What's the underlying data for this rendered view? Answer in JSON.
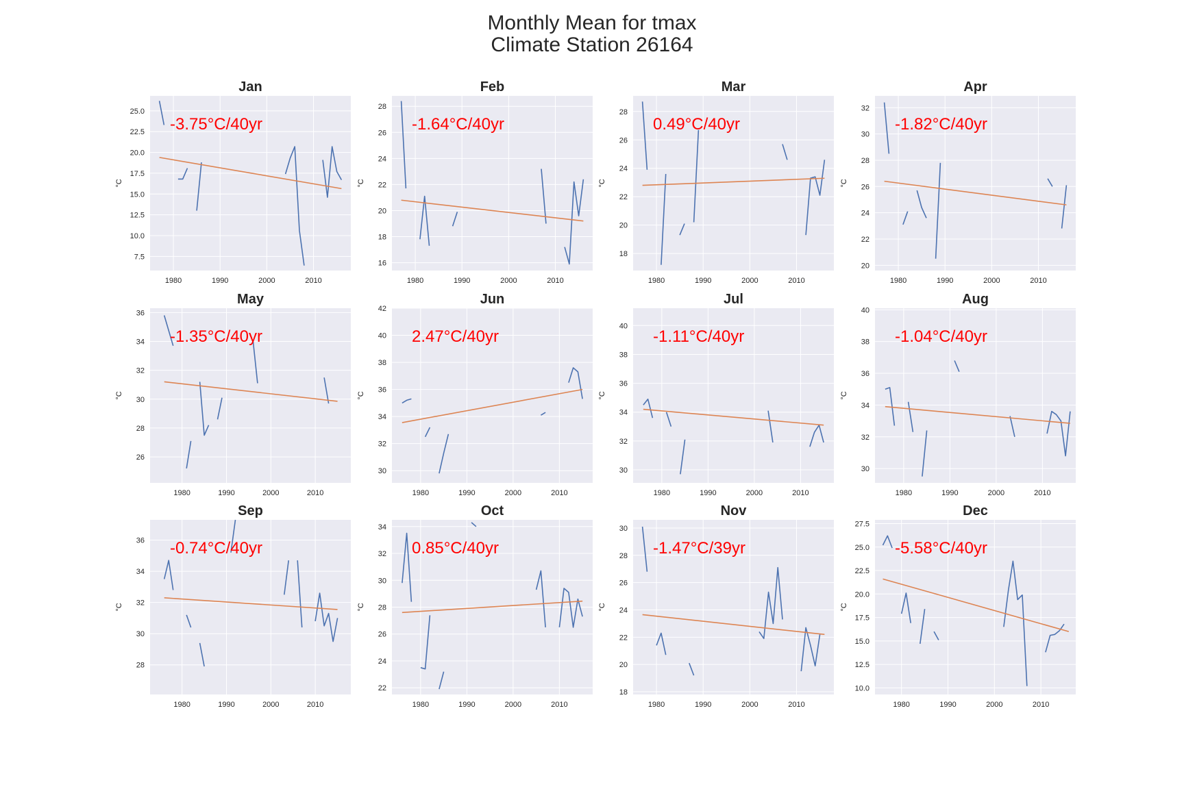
{
  "figure": {
    "title_line1": "Monthly Mean for tmax",
    "title_line2": "Climate Station 26164"
  },
  "colors": {
    "background": "#eaeaf2",
    "grid": "#ffffff",
    "series": "#4c72b0",
    "trend": "#dd8452",
    "annotation": "#ff0000",
    "text": "#262626"
  },
  "chart_data": [
    {
      "type": "line",
      "title": "Jan",
      "ylabel": "°C",
      "annotation": "-3.75°C/40yr",
      "xlim": [
        1975,
        2018
      ],
      "ylim": [
        5.8,
        26.8
      ],
      "xticks": [
        1980,
        1990,
        2000,
        2010
      ],
      "yticks": [
        7.5,
        10.0,
        12.5,
        15.0,
        17.5,
        20.0,
        22.5,
        25.0
      ],
      "series": [
        {
          "x": [
            1977,
            1978
          ],
          "y": [
            26.2,
            23.3
          ]
        },
        {
          "x": [
            1981,
            1982,
            1983
          ],
          "y": [
            16.8,
            16.8,
            18.1
          ]
        },
        {
          "x": [
            1985,
            1986
          ],
          "y": [
            13.0,
            18.8
          ]
        },
        {
          "x": [
            2004,
            2005,
            2006,
            2007,
            2008
          ],
          "y": [
            17.4,
            19.3,
            20.7,
            10.6,
            6.4
          ]
        },
        {
          "x": [
            2012,
            2013,
            2014,
            2015,
            2016
          ],
          "y": [
            19.1,
            14.6,
            20.7,
            17.7,
            16.7
          ]
        }
      ],
      "trend": {
        "x": [
          1977,
          2016
        ],
        "y": [
          19.4,
          15.65
        ]
      }
    },
    {
      "type": "line",
      "title": "Feb",
      "ylabel": "°C",
      "annotation": "-1.64°C/40yr",
      "xlim": [
        1975,
        2018
      ],
      "ylim": [
        15.4,
        28.8
      ],
      "xticks": [
        1980,
        1990,
        2000,
        2010
      ],
      "yticks": [
        16,
        18,
        20,
        22,
        24,
        26,
        28
      ],
      "series": [
        {
          "x": [
            1977,
            1978
          ],
          "y": [
            28.4,
            21.7
          ]
        },
        {
          "x": [
            1981,
            1982,
            1983
          ],
          "y": [
            17.8,
            21.1,
            17.3
          ]
        },
        {
          "x": [
            1988,
            1989
          ],
          "y": [
            18.8,
            19.9
          ]
        },
        {
          "x": [
            2007,
            2008
          ],
          "y": [
            23.2,
            19.0
          ]
        },
        {
          "x": [
            2012,
            2013,
            2014,
            2015,
            2016
          ],
          "y": [
            17.2,
            15.9,
            22.2,
            19.6,
            22.4
          ]
        }
      ],
      "trend": {
        "x": [
          1977,
          2016
        ],
        "y": [
          20.8,
          19.2
        ]
      }
    },
    {
      "type": "line",
      "title": "Mar",
      "ylabel": "°C",
      "annotation": "0.49°C/40yr",
      "xlim": [
        1975,
        2018
      ],
      "ylim": [
        16.8,
        29.1
      ],
      "xticks": [
        1980,
        1990,
        2000,
        2010
      ],
      "yticks": [
        18,
        20,
        22,
        24,
        26,
        28
      ],
      "series": [
        {
          "x": [
            1977,
            1978
          ],
          "y": [
            28.7,
            23.9
          ]
        },
        {
          "x": [
            1981,
            1982
          ],
          "y": [
            17.2,
            23.6
          ]
        },
        {
          "x": [
            1985,
            1986
          ],
          "y": [
            19.3,
            20.1
          ]
        },
        {
          "x": [
            1988,
            1989
          ],
          "y": [
            20.2,
            26.7
          ]
        },
        {
          "x": [
            2007,
            2008
          ],
          "y": [
            25.7,
            24.6
          ]
        },
        {
          "x": [
            2012,
            2013,
            2014,
            2015,
            2016
          ],
          "y": [
            19.3,
            23.3,
            23.4,
            22.1,
            24.6
          ]
        }
      ],
      "trend": {
        "x": [
          1977,
          2016
        ],
        "y": [
          22.8,
          23.3
        ]
      }
    },
    {
      "type": "line",
      "title": "Apr",
      "ylabel": "°C",
      "annotation": "-1.82°C/40yr",
      "xlim": [
        1975,
        2018
      ],
      "ylim": [
        19.6,
        32.9
      ],
      "xticks": [
        1980,
        1990,
        2000,
        2010
      ],
      "yticks": [
        20,
        22,
        24,
        26,
        28,
        30,
        32
      ],
      "series": [
        {
          "x": [
            1977,
            1978
          ],
          "y": [
            32.4,
            28.5
          ]
        },
        {
          "x": [
            1981,
            1982
          ],
          "y": [
            23.1,
            24.1
          ]
        },
        {
          "x": [
            1984,
            1985,
            1986
          ],
          "y": [
            25.7,
            24.4,
            23.6
          ]
        },
        {
          "x": [
            1988,
            1989
          ],
          "y": [
            20.5,
            27.8
          ]
        },
        {
          "x": [
            2012,
            2013
          ],
          "y": [
            26.6,
            26.0
          ]
        },
        {
          "x": [
            2015,
            2016
          ],
          "y": [
            22.8,
            26.1
          ]
        }
      ],
      "trend": {
        "x": [
          1977,
          2016
        ],
        "y": [
          26.4,
          24.6
        ]
      }
    },
    {
      "type": "line",
      "title": "May",
      "ylabel": "°C",
      "annotation": "-1.35°C/40yr",
      "xlim": [
        1972.8,
        2018
      ],
      "ylim": [
        24.2,
        36.3
      ],
      "xticks": [
        1980,
        1990,
        2000,
        2010
      ],
      "yticks": [
        26,
        28,
        30,
        32,
        34,
        36
      ],
      "series": [
        {
          "x": [
            1976,
            1978
          ],
          "y": [
            35.8,
            33.7
          ]
        },
        {
          "x": [
            1981,
            1982
          ],
          "y": [
            25.2,
            27.1
          ]
        },
        {
          "x": [
            1984,
            1985,
            1986
          ],
          "y": [
            31.2,
            27.5,
            28.2
          ]
        },
        {
          "x": [
            1988,
            1989
          ],
          "y": [
            28.6,
            30.1
          ]
        },
        {
          "x": [
            1996,
            1997
          ],
          "y": [
            34.0,
            31.1
          ]
        },
        {
          "x": [
            2012,
            2013
          ],
          "y": [
            31.5,
            29.7
          ]
        }
      ],
      "trend": {
        "x": [
          1976,
          2015
        ],
        "y": [
          31.2,
          29.85
        ]
      }
    },
    {
      "type": "line",
      "title": "Jun",
      "ylabel": "°C",
      "annotation": "2.47°C/40yr",
      "xlim": [
        1973.8,
        2017.2
      ],
      "ylim": [
        29.1,
        42.0
      ],
      "xticks": [
        1980,
        1990,
        2000,
        2010
      ],
      "yticks": [
        30,
        32,
        34,
        36,
        38,
        40,
        42
      ],
      "series": [
        {
          "x": [
            1976,
            1977,
            1978
          ],
          "y": [
            35.0,
            35.2,
            35.3
          ]
        },
        {
          "x": [
            1981,
            1982
          ],
          "y": [
            32.5,
            33.2
          ]
        },
        {
          "x": [
            1984,
            1985,
            1986
          ],
          "y": [
            29.8,
            31.3,
            32.7
          ]
        },
        {
          "x": [
            2006,
            2007
          ],
          "y": [
            34.1,
            34.3
          ]
        },
        {
          "x": [
            2012,
            2013,
            2014,
            2015
          ],
          "y": [
            36.5,
            37.6,
            37.3,
            35.3
          ]
        }
      ],
      "trend": {
        "x": [
          1976,
          2015
        ],
        "y": [
          33.55,
          36.0
        ]
      }
    },
    {
      "type": "line",
      "title": "Jul",
      "ylabel": "°C",
      "annotation": "-1.11°C/40yr",
      "xlim": [
        1973.8,
        2017.2
      ],
      "ylim": [
        29.1,
        41.2
      ],
      "xticks": [
        1980,
        1990,
        2000,
        2010
      ],
      "yticks": [
        30,
        32,
        34,
        36,
        38,
        40
      ],
      "series": [
        {
          "x": [
            1976,
            1977,
            1978
          ],
          "y": [
            34.5,
            34.9,
            33.6
          ]
        },
        {
          "x": [
            1981,
            1982
          ],
          "y": [
            34.0,
            33.0
          ]
        },
        {
          "x": [
            1984,
            1985
          ],
          "y": [
            29.7,
            32.1
          ]
        },
        {
          "x": [
            2003,
            2004
          ],
          "y": [
            34.1,
            31.9
          ]
        },
        {
          "x": [
            2012,
            2013,
            2014,
            2015
          ],
          "y": [
            31.6,
            32.6,
            33.1,
            31.9
          ]
        }
      ],
      "trend": {
        "x": [
          1976,
          2015
        ],
        "y": [
          34.2,
          33.1
        ]
      }
    },
    {
      "type": "line",
      "title": "Aug",
      "ylabel": "°C",
      "annotation": "-1.04°C/40yr",
      "xlim": [
        1973.8,
        2017.2
      ],
      "ylim": [
        29.1,
        40.1
      ],
      "xticks": [
        1980,
        1990,
        2000,
        2010
      ],
      "yticks": [
        30,
        32,
        34,
        36,
        38,
        40
      ],
      "series": [
        {
          "x": [
            1976,
            1977,
            1978
          ],
          "y": [
            35.0,
            35.1,
            32.7
          ]
        },
        {
          "x": [
            1981,
            1982
          ],
          "y": [
            34.2,
            32.3
          ]
        },
        {
          "x": [
            1984,
            1985
          ],
          "y": [
            29.5,
            32.4
          ]
        },
        {
          "x": [
            1991,
            1992
          ],
          "y": [
            36.8,
            36.1
          ]
        },
        {
          "x": [
            2003,
            2004
          ],
          "y": [
            33.3,
            32.0
          ]
        },
        {
          "x": [
            2011,
            2012,
            2013,
            2014,
            2015,
            2016
          ],
          "y": [
            32.2,
            33.6,
            33.4,
            33.0,
            30.8,
            33.6
          ]
        }
      ],
      "trend": {
        "x": [
          1976,
          2016
        ],
        "y": [
          33.9,
          32.85
        ]
      }
    },
    {
      "type": "line",
      "title": "Sep",
      "ylabel": "°C",
      "annotation": "-0.74°C/40yr",
      "xlim": [
        1972.8,
        2018
      ],
      "ylim": [
        26.1,
        37.3
      ],
      "xticks": [
        1980,
        1990,
        2000,
        2010
      ],
      "yticks": [
        28,
        30,
        32,
        34,
        36
      ],
      "series": [
        {
          "x": [
            1976,
            1977,
            1978
          ],
          "y": [
            33.5,
            34.7,
            32.8
          ]
        },
        {
          "x": [
            1981,
            1982
          ],
          "y": [
            31.2,
            30.4
          ]
        },
        {
          "x": [
            1984,
            1985
          ],
          "y": [
            29.4,
            27.9
          ]
        },
        {
          "x": [
            1991,
            1992
          ],
          "y": [
            35.2,
            37.3
          ]
        },
        {
          "x": [
            2003,
            2004
          ],
          "y": [
            32.5,
            34.7
          ]
        },
        {
          "x": [
            2006,
            2007
          ],
          "y": [
            34.7,
            30.4
          ]
        },
        {
          "x": [
            2010,
            2011,
            2012,
            2013,
            2014,
            2015
          ],
          "y": [
            30.8,
            32.6,
            30.5,
            31.3,
            29.5,
            31.0
          ]
        }
      ],
      "trend": {
        "x": [
          1976,
          2015
        ],
        "y": [
          32.3,
          31.55
        ]
      }
    },
    {
      "type": "line",
      "title": "Oct",
      "ylabel": "°C",
      "annotation": "0.85°C/40yr",
      "xlim": [
        1973.8,
        2017.2
      ],
      "ylim": [
        21.5,
        34.5
      ],
      "xticks": [
        1980,
        1990,
        2000,
        2010
      ],
      "yticks": [
        22,
        24,
        26,
        28,
        30,
        32,
        34
      ],
      "series": [
        {
          "x": [
            1976,
            1977,
            1978
          ],
          "y": [
            29.8,
            33.5,
            28.4
          ]
        },
        {
          "x": [
            1980,
            1981,
            1982
          ],
          "y": [
            23.5,
            23.4,
            27.4
          ]
        },
        {
          "x": [
            1984,
            1985
          ],
          "y": [
            21.9,
            23.2
          ]
        },
        {
          "x": [
            1991,
            1992
          ],
          "y": [
            34.3,
            34.0
          ]
        },
        {
          "x": [
            2005,
            2006,
            2007
          ],
          "y": [
            29.3,
            30.7,
            26.5
          ]
        },
        {
          "x": [
            2010,
            2011,
            2012,
            2013,
            2014,
            2015
          ],
          "y": [
            26.5,
            29.4,
            29.1,
            26.5,
            28.6,
            27.3
          ]
        }
      ],
      "trend": {
        "x": [
          1976,
          2015
        ],
        "y": [
          27.6,
          28.45
        ]
      }
    },
    {
      "type": "line",
      "title": "Nov",
      "ylabel": "°C",
      "annotation": "-1.47°C/39yr",
      "xlim": [
        1975,
        2018
      ],
      "ylim": [
        17.8,
        30.6
      ],
      "xticks": [
        1980,
        1990,
        2000,
        2010
      ],
      "yticks": [
        18,
        20,
        22,
        24,
        26,
        28,
        30
      ],
      "series": [
        {
          "x": [
            1977,
            1978
          ],
          "y": [
            30.1,
            26.8
          ]
        },
        {
          "x": [
            1980,
            1981,
            1982
          ],
          "y": [
            21.4,
            22.3,
            20.7
          ]
        },
        {
          "x": [
            1987,
            1988
          ],
          "y": [
            20.1,
            19.2
          ]
        },
        {
          "x": [
            2002,
            2003,
            2004,
            2005,
            2006,
            2007
          ],
          "y": [
            22.4,
            21.9,
            25.3,
            23.0,
            27.1,
            23.3
          ]
        },
        {
          "x": [
            2011,
            2012,
            2013,
            2014,
            2015
          ],
          "y": [
            19.5,
            22.7,
            21.4,
            19.9,
            22.2
          ]
        }
      ],
      "trend": {
        "x": [
          1977,
          2016
        ],
        "y": [
          23.65,
          22.2
        ]
      }
    },
    {
      "type": "line",
      "title": "Dec",
      "ylabel": "°C",
      "annotation": "-5.58°C/40yr",
      "xlim": [
        1974.3,
        2017.5
      ],
      "ylim": [
        9.3,
        27.9
      ],
      "xticks": [
        1980,
        1990,
        2000,
        2010
      ],
      "yticks": [
        10.0,
        12.5,
        15.0,
        17.5,
        20.0,
        22.5,
        25.0,
        27.5
      ],
      "series": [
        {
          "x": [
            1976,
            1977,
            1978
          ],
          "y": [
            25.2,
            26.2,
            24.9
          ]
        },
        {
          "x": [
            1980,
            1981,
            1982
          ],
          "y": [
            17.9,
            20.1,
            16.9
          ]
        },
        {
          "x": [
            1984,
            1985
          ],
          "y": [
            14.7,
            18.4
          ]
        },
        {
          "x": [
            1987,
            1988
          ],
          "y": [
            16.0,
            15.1
          ]
        },
        {
          "x": [
            2002,
            2003,
            2004,
            2005,
            2006,
            2007
          ],
          "y": [
            16.5,
            20.4,
            23.5,
            19.4,
            19.9,
            10.2
          ]
        },
        {
          "x": [
            2011,
            2012,
            2013,
            2014,
            2015
          ],
          "y": [
            13.8,
            15.6,
            15.7,
            16.1,
            16.8
          ]
        }
      ],
      "trend": {
        "x": [
          1976,
          2016
        ],
        "y": [
          21.6,
          16.0
        ]
      }
    }
  ]
}
